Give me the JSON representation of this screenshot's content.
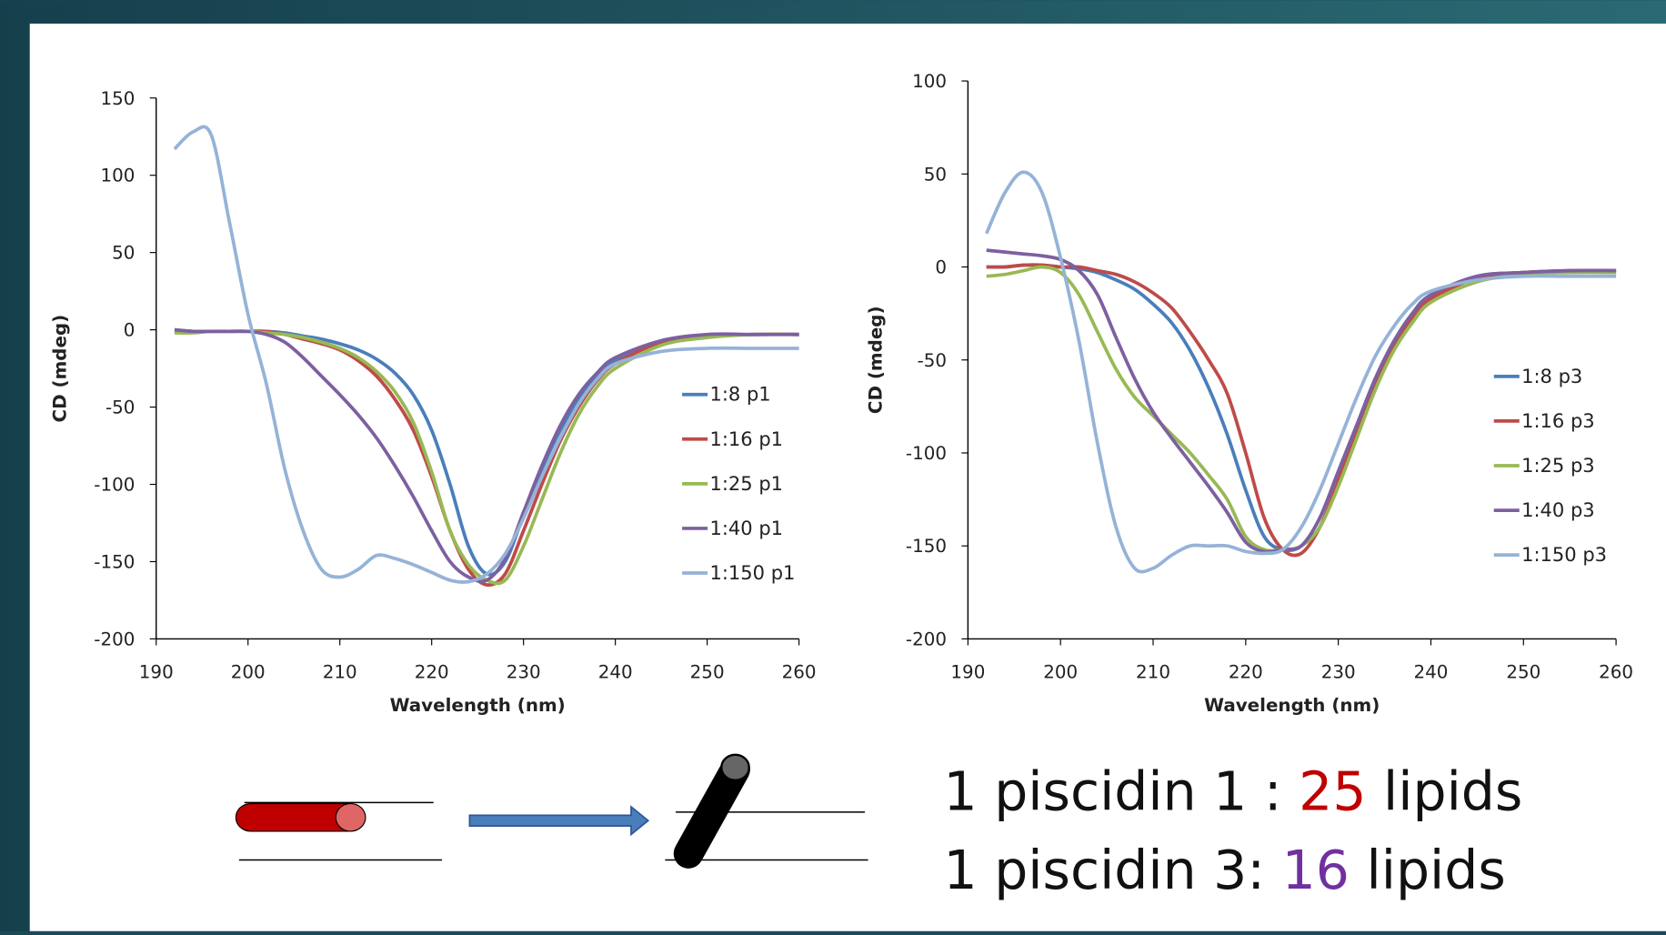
{
  "chart_data": [
    {
      "type": "line",
      "x_label": "Wavelength (nm)",
      "y_label": "CD (mdeg)",
      "x": [
        192,
        194,
        196,
        198,
        200,
        202,
        204,
        206,
        208,
        210,
        212,
        214,
        216,
        218,
        220,
        222,
        224,
        226,
        228,
        230,
        232,
        234,
        236,
        238,
        240,
        245,
        250,
        255,
        260
      ],
      "xlim": [
        190,
        260
      ],
      "xticks": [
        190,
        200,
        210,
        220,
        230,
        240,
        250,
        260
      ],
      "ylim": [
        -200,
        150
      ],
      "yticks": [
        -200,
        -150,
        -100,
        -50,
        0,
        50,
        100,
        150
      ],
      "legend": "right",
      "series": [
        {
          "name": "1:8 p1",
          "color": "#4a7ebb",
          "values": [
            0,
            -1,
            -1,
            -1,
            -1,
            -1,
            -2,
            -4,
            -6,
            -9,
            -13,
            -19,
            -28,
            -42,
            -65,
            -100,
            -140,
            -158,
            -150,
            -120,
            -90,
            -65,
            -45,
            -30,
            -20,
            -8,
            -4,
            -3,
            -3
          ]
        },
        {
          "name": "1:16 p1",
          "color": "#be4b48",
          "values": [
            -1,
            -1,
            -1,
            -1,
            -1,
            -1,
            -3,
            -6,
            -9,
            -13,
            -20,
            -30,
            -45,
            -65,
            -95,
            -130,
            -155,
            -165,
            -158,
            -130,
            -100,
            -72,
            -50,
            -33,
            -22,
            -8,
            -4,
            -3,
            -3
          ]
        },
        {
          "name": "1:25 p1",
          "color": "#98b954",
          "values": [
            -2,
            -2,
            -1,
            -1,
            -1,
            -2,
            -3,
            -5,
            -8,
            -12,
            -18,
            -27,
            -40,
            -60,
            -92,
            -130,
            -152,
            -162,
            -162,
            -140,
            -110,
            -80,
            -55,
            -37,
            -25,
            -10,
            -5,
            -3,
            -3
          ]
        },
        {
          "name": "1:40 p1",
          "color": "#7d60a0",
          "values": [
            0,
            -1,
            -1,
            -1,
            -1,
            -3,
            -8,
            -18,
            -30,
            -42,
            -55,
            -70,
            -88,
            -108,
            -130,
            -150,
            -160,
            -162,
            -148,
            -118,
            -88,
            -62,
            -42,
            -28,
            -18,
            -7,
            -3,
            -3,
            -3
          ]
        },
        {
          "name": "1:150 p1",
          "color": "#95b3d7",
          "values": [
            117,
            128,
            126,
            69,
            10,
            -35,
            -90,
            -130,
            -155,
            -160,
            -155,
            -146,
            -148,
            -152,
            -157,
            -162,
            -163,
            -158,
            -145,
            -122,
            -95,
            -70,
            -48,
            -32,
            -22,
            -14,
            -12,
            -12,
            -12
          ]
        }
      ]
    },
    {
      "type": "line",
      "x_label": "Wavelength (nm)",
      "y_label": "CD (mdeg)",
      "x": [
        192,
        194,
        196,
        198,
        200,
        202,
        204,
        206,
        208,
        210,
        212,
        214,
        216,
        218,
        220,
        222,
        224,
        226,
        228,
        230,
        232,
        234,
        236,
        238,
        240,
        245,
        250,
        255,
        260
      ],
      "xlim": [
        190,
        260
      ],
      "xticks": [
        190,
        200,
        210,
        220,
        230,
        240,
        250,
        260
      ],
      "ylim": [
        -200,
        100
      ],
      "yticks": [
        -200,
        -150,
        -100,
        -50,
        0,
        50,
        100
      ],
      "legend": "right",
      "series": [
        {
          "name": "1:8 p3",
          "color": "#4a7ebb",
          "values": [
            0,
            0,
            1,
            1,
            0,
            -1,
            -3,
            -7,
            -12,
            -20,
            -30,
            -45,
            -65,
            -90,
            -120,
            -145,
            -152,
            -150,
            -135,
            -110,
            -85,
            -60,
            -40,
            -25,
            -15,
            -5,
            -3,
            -2,
            -2
          ]
        },
        {
          "name": "1:16 p3",
          "color": "#be4b48",
          "values": [
            0,
            0,
            1,
            1,
            0,
            0,
            -2,
            -4,
            -8,
            -14,
            -22,
            -35,
            -50,
            -68,
            -100,
            -135,
            -152,
            -154,
            -140,
            -115,
            -88,
            -62,
            -42,
            -27,
            -17,
            -6,
            -3,
            -2,
            -2
          ]
        },
        {
          "name": "1:25 p3",
          "color": "#98b954",
          "values": [
            -5,
            -4,
            -2,
            0,
            -3,
            -15,
            -35,
            -55,
            -70,
            -80,
            -90,
            -100,
            -112,
            -125,
            -145,
            -152,
            -152,
            -150,
            -140,
            -118,
            -92,
            -66,
            -45,
            -30,
            -19,
            -8,
            -4,
            -3,
            -3
          ]
        },
        {
          "name": "1:40 p3",
          "color": "#7d60a0",
          "values": [
            9,
            8,
            7,
            6,
            4,
            -2,
            -15,
            -38,
            -60,
            -78,
            -92,
            -105,
            -118,
            -132,
            -148,
            -153,
            -152,
            -150,
            -135,
            -110,
            -85,
            -60,
            -40,
            -25,
            -15,
            -5,
            -3,
            -2,
            -2
          ]
        },
        {
          "name": "1:150 p3",
          "color": "#95b3d7",
          "values": [
            18,
            40,
            51,
            40,
            5,
            -40,
            -95,
            -140,
            -162,
            -162,
            -155,
            -150,
            -150,
            -150,
            -153,
            -154,
            -152,
            -140,
            -120,
            -95,
            -70,
            -48,
            -32,
            -20,
            -13,
            -7,
            -5,
            -5,
            -5
          ]
        }
      ]
    }
  ],
  "caption": {
    "lines": [
      {
        "parts": [
          {
            "text": "1 piscidin 1 : "
          },
          {
            "text": "25",
            "color": "#c00000"
          },
          {
            "text": " lipids"
          }
        ]
      },
      {
        "parts": [
          {
            "text": "1 piscidin 3: "
          },
          {
            "text": "16",
            "color": "#7030a0"
          },
          {
            "text": " lipids"
          }
        ]
      }
    ]
  }
}
